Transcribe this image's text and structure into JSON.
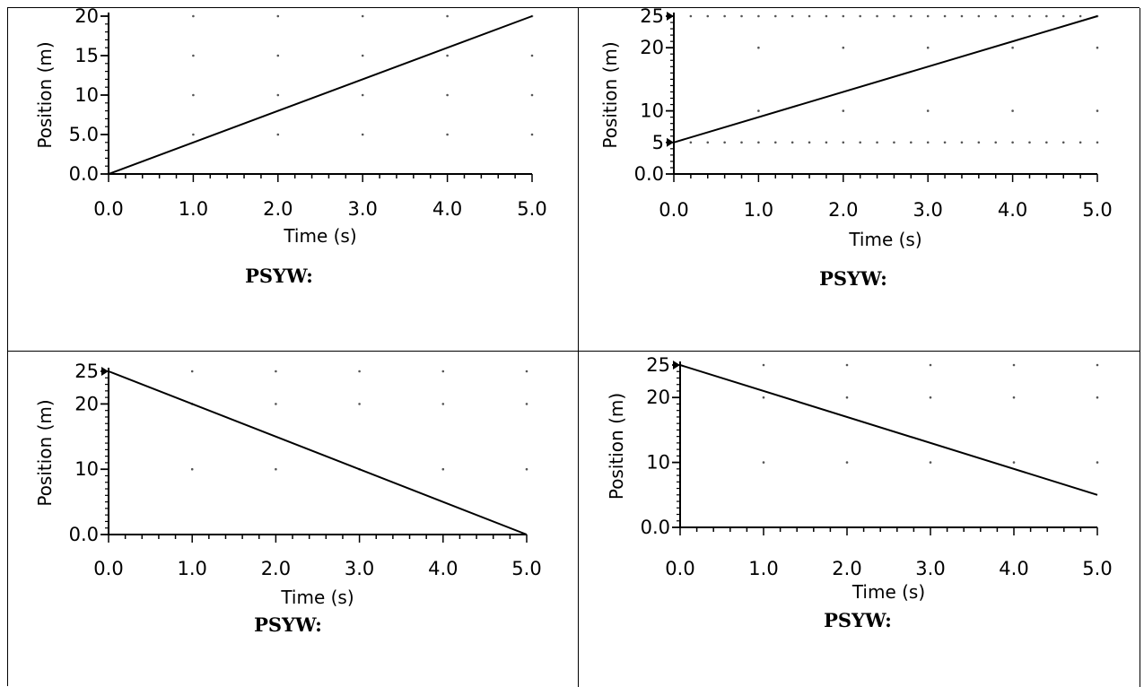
{
  "worksheet": {
    "chart_data": [
      {
        "type": "line",
        "xlabel": "Time (s)",
        "ylabel": "Position (m)",
        "xlim": [
          0,
          5
        ],
        "ylim": [
          0,
          20
        ],
        "x_ticks": [
          "0.0",
          "1.0",
          "2.0",
          "3.0",
          "4.0",
          "5.0"
        ],
        "y_ticks": [
          {
            "v": 0,
            "label": "0.0"
          },
          {
            "v": 5,
            "label": "5.0"
          },
          {
            "v": 10,
            "label": "10"
          },
          {
            "v": 15,
            "label": "15"
          },
          {
            "v": 20,
            "label": "20"
          }
        ],
        "grid": "dotted",
        "series": [
          {
            "x": [
              0,
              5
            ],
            "y": [
              0,
              20
            ]
          }
        ],
        "psyw_label": "PSYW:"
      },
      {
        "type": "line",
        "xlabel": "Time (s)",
        "ylabel": "Position (m)",
        "xlim": [
          0,
          5
        ],
        "ylim": [
          0,
          25
        ],
        "x_ticks": [
          "0.0",
          "1.0",
          "2.0",
          "3.0",
          "4.0",
          "5.0"
        ],
        "y_ticks": [
          {
            "v": 0,
            "label": "0.0"
          },
          {
            "v": 5,
            "label": "5",
            "arrow": true
          },
          {
            "v": 10,
            "label": "10"
          },
          {
            "v": 20,
            "label": "20"
          },
          {
            "v": 25,
            "label": "25",
            "arrow": true
          }
        ],
        "grid": "dotted",
        "series": [
          {
            "x": [
              0,
              5
            ],
            "y": [
              5,
              25
            ]
          }
        ],
        "psyw_label": "PSYW:"
      },
      {
        "type": "line",
        "xlabel": "Time (s)",
        "ylabel": "Position (m)",
        "xlim": [
          0,
          5
        ],
        "ylim": [
          0,
          25
        ],
        "x_ticks": [
          "0.0",
          "1.0",
          "2.0",
          "3.0",
          "4.0",
          "5.0"
        ],
        "y_ticks": [
          {
            "v": 0,
            "label": "0.0"
          },
          {
            "v": 10,
            "label": "10"
          },
          {
            "v": 20,
            "label": "20"
          },
          {
            "v": 25,
            "label": "25",
            "arrow": true
          }
        ],
        "grid": "dotted",
        "series": [
          {
            "x": [
              0,
              5
            ],
            "y": [
              25,
              0
            ]
          }
        ],
        "psyw_label": "PSYW:"
      },
      {
        "type": "line",
        "xlabel": "Time (s)",
        "ylabel": "Position (m)",
        "xlim": [
          0,
          5
        ],
        "ylim": [
          0,
          25
        ],
        "x_ticks": [
          "0.0",
          "1.0",
          "2.0",
          "3.0",
          "4.0",
          "5.0"
        ],
        "y_ticks": [
          {
            "v": 0,
            "label": "0.0"
          },
          {
            "v": 10,
            "label": "10"
          },
          {
            "v": 20,
            "label": "20"
          },
          {
            "v": 25,
            "label": "25",
            "arrow": true
          }
        ],
        "grid": "dotted",
        "series": [
          {
            "x": [
              0,
              5
            ],
            "y": [
              25,
              5
            ]
          }
        ],
        "psyw_label": "PSYW:"
      }
    ]
  }
}
